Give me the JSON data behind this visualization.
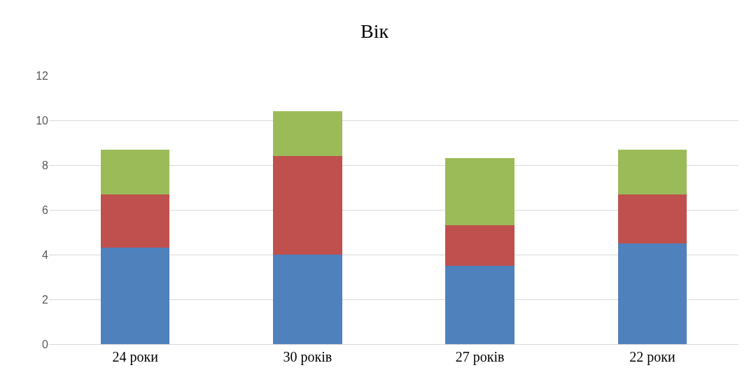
{
  "chart_data": {
    "type": "bar",
    "title": "Вік",
    "categories": [
      "24 роки",
      "30 років",
      "27 років",
      "22 роки"
    ],
    "stacked": true,
    "series": [
      {
        "color": "#4f81bd",
        "values": [
          4.3,
          4.0,
          3.5,
          4.5
        ]
      },
      {
        "color": "#c0504d",
        "values": [
          2.4,
          4.4,
          1.8,
          2.2
        ]
      },
      {
        "color": "#9bbb59",
        "values": [
          2.0,
          2.0,
          3.0,
          2.0
        ]
      }
    ],
    "ylim": [
      0,
      12
    ],
    "yticks": [
      0,
      2,
      4,
      6,
      8,
      10,
      12
    ],
    "grid": "y"
  }
}
